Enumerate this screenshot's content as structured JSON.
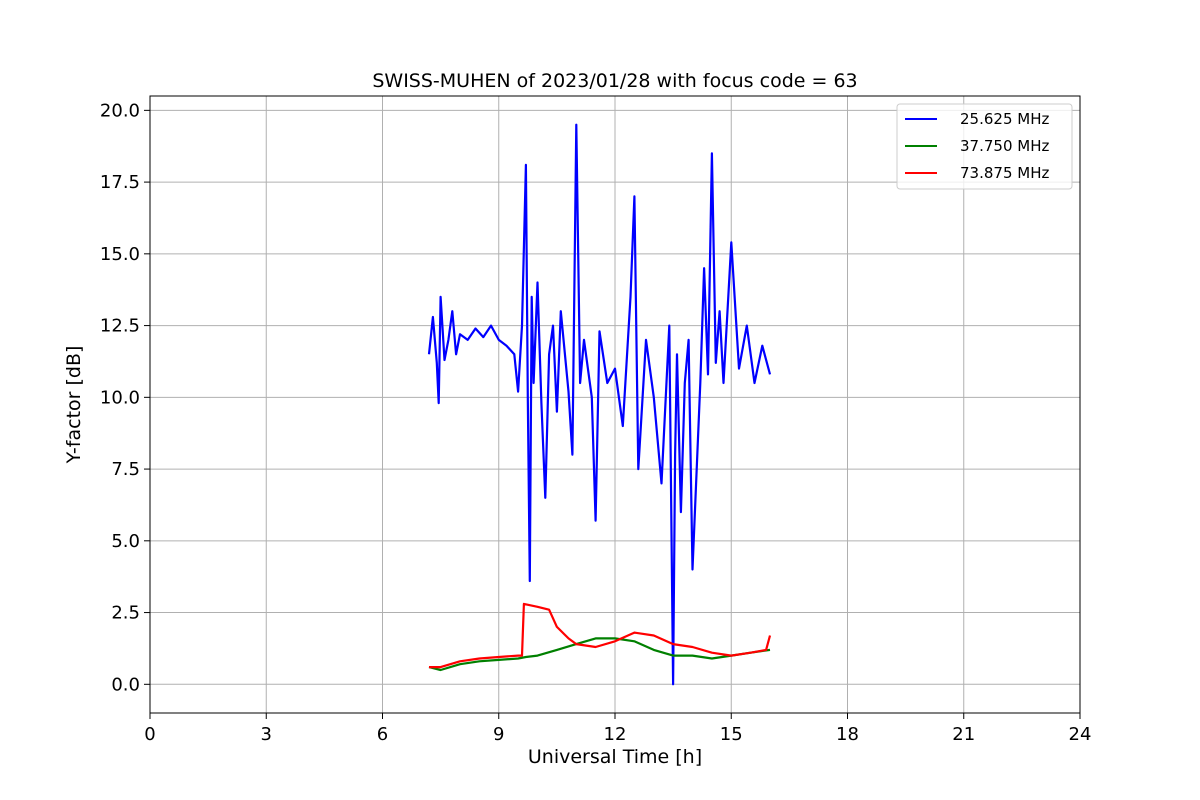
{
  "chart_data": {
    "type": "line",
    "title": "SWISS-MUHEN of 2023/01/28 with focus code = 63",
    "xlabel": "Universal Time [h]",
    "ylabel": "Y-factor [dB]",
    "xlim": [
      0,
      24
    ],
    "ylim": [
      -1.0,
      20.5
    ],
    "xticks": [
      0,
      3,
      6,
      9,
      12,
      15,
      18,
      21,
      24
    ],
    "xtick_labels": [
      "0",
      "3",
      "6",
      "9",
      "12",
      "15",
      "18",
      "21",
      "24"
    ],
    "yticks": [
      0.0,
      2.5,
      5.0,
      7.5,
      10.0,
      12.5,
      15.0,
      17.5,
      20.0
    ],
    "ytick_labels": [
      "0.0",
      "2.5",
      "5.0",
      "7.5",
      "10.0",
      "12.5",
      "15.0",
      "17.5",
      "20.0"
    ],
    "grid": true,
    "legend_position": "top-right",
    "series": [
      {
        "name": "25.625 MHz",
        "color": "#0000ff",
        "x": [
          7.2,
          7.3,
          7.4,
          7.45,
          7.5,
          7.6,
          7.7,
          7.8,
          7.9,
          8.0,
          8.2,
          8.4,
          8.6,
          8.8,
          9.0,
          9.2,
          9.4,
          9.5,
          9.6,
          9.7,
          9.75,
          9.8,
          9.85,
          9.9,
          10.0,
          10.1,
          10.2,
          10.3,
          10.4,
          10.5,
          10.6,
          10.8,
          10.9,
          11.0,
          11.1,
          11.2,
          11.4,
          11.5,
          11.6,
          11.8,
          12.0,
          12.2,
          12.4,
          12.5,
          12.6,
          12.8,
          13.0,
          13.2,
          13.4,
          13.5,
          13.55,
          13.6,
          13.7,
          13.8,
          13.9,
          14.0,
          14.2,
          14.3,
          14.4,
          14.5,
          14.6,
          14.7,
          14.8,
          15.0,
          15.2,
          15.4,
          15.6,
          15.8,
          16.0
        ],
        "y": [
          11.5,
          12.8,
          11.2,
          9.8,
          13.5,
          11.3,
          12.0,
          13.0,
          11.5,
          12.2,
          12.0,
          12.4,
          12.1,
          12.5,
          12.0,
          11.8,
          11.5,
          10.2,
          12.5,
          18.1,
          10.0,
          3.6,
          13.5,
          10.5,
          14.0,
          9.8,
          6.5,
          11.5,
          12.5,
          9.5,
          13.0,
          10.2,
          8.0,
          19.5,
          10.5,
          12.0,
          10.0,
          5.7,
          12.3,
          10.5,
          11.0,
          9.0,
          13.5,
          17.0,
          7.5,
          12.0,
          10.0,
          7.0,
          12.5,
          0.0,
          8.0,
          11.5,
          6.0,
          10.5,
          12.0,
          4.0,
          10.5,
          14.5,
          10.8,
          18.5,
          11.2,
          13.0,
          10.5,
          15.4,
          11.0,
          12.5,
          10.5,
          11.8,
          10.8
        ]
      },
      {
        "name": "37.750 MHz",
        "color": "#008000",
        "x": [
          7.2,
          7.5,
          8.0,
          8.5,
          9.0,
          9.5,
          9.7,
          10.0,
          10.5,
          11.0,
          11.5,
          12.0,
          12.5,
          13.0,
          13.5,
          14.0,
          14.5,
          15.0,
          15.5,
          16.0
        ],
        "y": [
          0.6,
          0.5,
          0.7,
          0.8,
          0.85,
          0.9,
          0.95,
          1.0,
          1.2,
          1.4,
          1.6,
          1.6,
          1.5,
          1.2,
          1.0,
          1.0,
          0.9,
          1.0,
          1.1,
          1.2
        ]
      },
      {
        "name": "73.875 MHz",
        "color": "#ff0000",
        "x": [
          7.2,
          7.5,
          8.0,
          8.5,
          9.0,
          9.5,
          9.6,
          9.65,
          10.0,
          10.3,
          10.5,
          10.8,
          11.0,
          11.5,
          12.0,
          12.5,
          13.0,
          13.5,
          14.0,
          14.5,
          15.0,
          15.5,
          15.9,
          16.0
        ],
        "y": [
          0.6,
          0.6,
          0.8,
          0.9,
          0.95,
          1.0,
          1.0,
          2.8,
          2.7,
          2.6,
          2.0,
          1.6,
          1.4,
          1.3,
          1.5,
          1.8,
          1.7,
          1.4,
          1.3,
          1.1,
          1.0,
          1.1,
          1.2,
          1.7
        ]
      }
    ]
  }
}
